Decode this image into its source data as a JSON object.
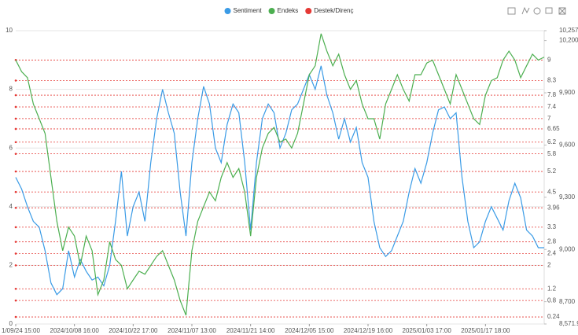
{
  "chart_data": {
    "type": "line",
    "categories": [
      "1/09/24 15:00",
      null,
      null,
      null,
      null,
      null,
      null,
      null,
      null,
      null,
      "2024/10/08 16:00",
      null,
      null,
      null,
      null,
      null,
      null,
      null,
      null,
      null,
      "2024/10/22 17:00",
      null,
      null,
      null,
      null,
      null,
      null,
      null,
      null,
      null,
      "2024/11/07 13:00",
      null,
      null,
      null,
      null,
      null,
      null,
      null,
      null,
      null,
      "2024/11/21 14:00",
      null,
      null,
      null,
      null,
      null,
      null,
      null,
      null,
      null,
      "2024/12/05 15:00",
      null,
      null,
      null,
      null,
      null,
      null,
      null,
      null,
      null,
      "2024/12/19 16:00",
      null,
      null,
      null,
      null,
      null,
      null,
      null,
      null,
      null,
      "2025/01/03 17:00",
      null,
      null,
      null,
      null,
      null,
      null,
      null,
      null,
      null,
      "2025/01/17 18:00",
      null,
      null,
      null,
      null,
      null,
      null,
      null,
      null,
      null,
      null
    ],
    "series": [
      {
        "name": "Sentiment",
        "color": "#3a9be6",
        "values": [
          5.0,
          4.6,
          4.0,
          3.5,
          3.3,
          2.5,
          1.4,
          1.0,
          1.2,
          2.5,
          1.6,
          2.2,
          1.8,
          1.5,
          1.6,
          1.3,
          2.0,
          3.5,
          5.2,
          3.0,
          4.0,
          4.5,
          3.5,
          5.5,
          7.0,
          8.0,
          7.2,
          6.5,
          4.5,
          3.0,
          5.5,
          7.0,
          8.1,
          7.5,
          6.0,
          5.5,
          6.8,
          7.5,
          7.2,
          5.5,
          3.2,
          5.5,
          7.0,
          7.5,
          7.2,
          6.0,
          6.5,
          7.3,
          7.5,
          8.0,
          8.5,
          8.0,
          8.8,
          7.8,
          7.2,
          6.3,
          7.0,
          6.2,
          6.7,
          5.5,
          5.0,
          3.5,
          2.6,
          2.3,
          2.5,
          3.0,
          3.5,
          4.5,
          5.3,
          4.8,
          5.5,
          6.5,
          7.3,
          7.4,
          7.0,
          7.2,
          5.0,
          3.5,
          2.6,
          2.8,
          3.5,
          4.0,
          3.6,
          3.2,
          4.2,
          4.8,
          4.3,
          3.2,
          3.0,
          2.6,
          2.6
        ]
      },
      {
        "name": "Endeks",
        "color": "#4caf50",
        "axis": "y2",
        "values": [
          10088,
          10021,
          9987,
          9836,
          9751,
          9667,
          9414,
          9162,
          8993,
          9128,
          9077,
          8909,
          9077,
          8993,
          8740,
          8825,
          9044,
          8943,
          8909,
          8774,
          8825,
          8875,
          8858,
          8909,
          8960,
          8993,
          8909,
          8825,
          8707,
          8622,
          8993,
          9162,
          9246,
          9330,
          9280,
          9414,
          9499,
          9414,
          9465,
          9330,
          9077,
          9414,
          9583,
          9667,
          9701,
          9617,
          9634,
          9583,
          9667,
          9836,
          10004,
          10055,
          10240,
          10139,
          10055,
          10122,
          10004,
          9920,
          9970,
          9836,
          9751,
          9751,
          9634,
          9836,
          9920,
          10004,
          9920,
          9852,
          10004,
          10004,
          10071,
          10088,
          10004,
          9920,
          9836,
          10004,
          9920,
          9836,
          9751,
          9718,
          9886,
          9970,
          9987,
          10088,
          10139,
          10088,
          9987,
          10055,
          10122,
          10088,
          10105
        ]
      }
    ],
    "support_resistance": {
      "name": "Destek/Direnç",
      "color": "#e53935",
      "levels": [
        9,
        8.3,
        7.8,
        7.4,
        7,
        6.65,
        6.2,
        5.8,
        5.2,
        4.5,
        3.96,
        3.3,
        2.8,
        2.4,
        2,
        1.2,
        0.8,
        0.24
      ]
    },
    "ylim": [
      0,
      10
    ],
    "yticks": [
      0,
      2,
      4,
      6,
      8,
      10
    ],
    "y2lim": [
      8571.9,
      10257
    ],
    "y2ticks": [
      {
        "value": 10257,
        "label": "10,257."
      },
      {
        "value": 10200,
        "label": "10,200"
      },
      {
        "value": 9900,
        "label": "9,900"
      },
      {
        "value": 9600,
        "label": "9,600"
      },
      {
        "value": 9300,
        "label": "9,300"
      },
      {
        "value": 9000,
        "label": "9,000"
      },
      {
        "value": 8700,
        "label": "8,700"
      },
      {
        "value": 8571.9,
        "label": "8,571.9"
      }
    ],
    "grid": true,
    "legend": "top"
  }
}
